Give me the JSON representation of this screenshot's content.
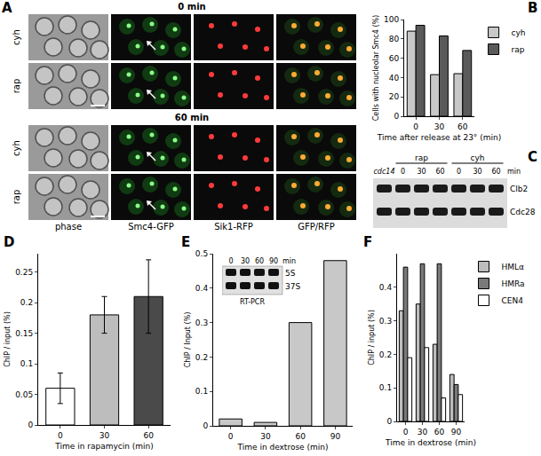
{
  "chart_data": [
    {
      "label": "B",
      "type": "bar",
      "categories": [
        "0",
        "30",
        "60"
      ],
      "series": [
        {
          "name": "cyh",
          "color": "#c8c8c8",
          "values": [
            88,
            43,
            44
          ]
        },
        {
          "name": "rap",
          "color": "#5a5a5a",
          "values": [
            94,
            83,
            68
          ]
        }
      ],
      "x_label": "Time after release at 23° (min)",
      "y_label": "Cells with nucleolar Smc4 (%)",
      "ylim": [
        0,
        100
      ],
      "yticks": [
        0,
        20,
        40,
        60,
        80,
        100
      ],
      "legend": "right"
    },
    {
      "label": "D",
      "type": "bar",
      "categories": [
        "0",
        "30",
        "60"
      ],
      "values": [
        0.06,
        0.18,
        0.21
      ],
      "errors": [
        0.025,
        0.03,
        0.06
      ],
      "colors": [
        "#ffffff",
        "#bdbdbd",
        "#4a4a4a"
      ],
      "x_label": "Time in rapamycin (min)",
      "y_label": "ChIP / input (%)",
      "ylim": [
        0,
        0.28
      ],
      "yticks": [
        0,
        0.05,
        0.1,
        0.15,
        0.2,
        0.25
      ]
    },
    {
      "label": "E",
      "type": "bar",
      "categories": [
        "0",
        "30",
        "60",
        "90"
      ],
      "values": [
        0.02,
        0.01,
        0.3,
        0.48
      ],
      "color": "#c8c8c8",
      "x_label": "Time in dextrose (min)",
      "y_label": "ChIP / Input (%)",
      "ylim": [
        0,
        0.5
      ],
      "yticks": [
        0,
        0.1,
        0.2,
        0.3,
        0.4,
        0.5
      ]
    },
    {
      "label": "F",
      "type": "bar",
      "categories": [
        "0",
        "30",
        "60",
        "90"
      ],
      "series": [
        {
          "name": "HMLα",
          "color": "#bdbdbd",
          "values": [
            0.33,
            0.35,
            0.23,
            0.14
          ]
        },
        {
          "name": "HMRa",
          "color": "#7a7a7a",
          "values": [
            0.46,
            0.47,
            0.47,
            0.11
          ]
        },
        {
          "name": "CEN4",
          "color": "#ffffff",
          "values": [
            0.19,
            0.22,
            0.07,
            0.08
          ]
        }
      ],
      "x_label": "Time in dextrose (min)",
      "y_label": "ChIP / input (%)",
      "ylim": [
        0,
        0.5
      ],
      "yticks": [
        0,
        0.1,
        0.2,
        0.3,
        0.4
      ],
      "legend": "right"
    }
  ],
  "panels": {
    "A": {
      "label": "A",
      "sections": [
        "0 min",
        "60 min"
      ],
      "rows": [
        "cyh",
        "rap"
      ],
      "columns": [
        "phase",
        "Smc4-GFP",
        "Sik1-RFP",
        "GFP/RFP"
      ]
    },
    "C": {
      "label": "C",
      "strain": "cdc14",
      "groups": [
        "rap",
        "cyh"
      ],
      "times": [
        "0",
        "30",
        "60"
      ],
      "unit": "min",
      "rows": [
        "Clb2",
        "Cdc28"
      ]
    },
    "E_inset": {
      "times": [
        "0",
        "30",
        "60",
        "90"
      ],
      "unit": "min",
      "rows": [
        "5S",
        "37S"
      ],
      "caption": "RT-PCR"
    }
  }
}
